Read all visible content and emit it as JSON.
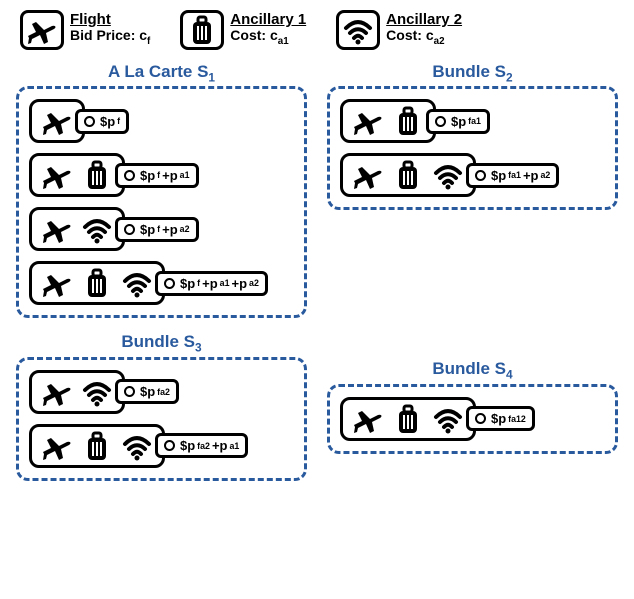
{
  "header": {
    "flight": {
      "label": "Flight",
      "cost_prefix": "Bid Price: c",
      "cost_sub": "f"
    },
    "anc1": {
      "label": "Ancillary 1",
      "cost_prefix": "Cost: c",
      "cost_sub": "a1"
    },
    "anc2": {
      "label": "Ancillary 2",
      "cost_prefix": "Cost: c",
      "cost_sub": "a2"
    }
  },
  "groups": {
    "s1": {
      "title_prefix": "A La Carte S",
      "title_sub": "1",
      "items": [
        {
          "icons": [
            "plane"
          ],
          "tag_prefix": "$p",
          "tag_sub": "f"
        },
        {
          "icons": [
            "plane",
            "bag"
          ],
          "tag_prefix": "$p",
          "tag_sub": "f",
          "extra": "+p",
          "extra_sub": "a1"
        },
        {
          "icons": [
            "plane",
            "wifi"
          ],
          "tag_prefix": "$p",
          "tag_sub": "f",
          "extra": "+p",
          "extra_sub": "a2"
        },
        {
          "icons": [
            "plane",
            "bag",
            "wifi"
          ],
          "tag_prefix": "$p",
          "tag_sub": "f",
          "extra": "+p",
          "extra_sub": "a1",
          "extra2": "+p",
          "extra2_sub": "a2"
        }
      ]
    },
    "s2": {
      "title_prefix": "Bundle S",
      "title_sub": "2",
      "items": [
        {
          "icons": [
            "plane",
            "bag"
          ],
          "tag_prefix": "$p",
          "tag_sub": "fa1"
        },
        {
          "icons": [
            "plane",
            "bag",
            "wifi"
          ],
          "tag_prefix": "$p",
          "tag_sub": "fa1",
          "extra": "+p",
          "extra_sub": "a2"
        }
      ]
    },
    "s3": {
      "title_prefix": "Bundle S",
      "title_sub": "3",
      "items": [
        {
          "icons": [
            "plane",
            "wifi"
          ],
          "tag_prefix": "$p",
          "tag_sub": "fa2"
        },
        {
          "icons": [
            "plane",
            "bag",
            "wifi"
          ],
          "tag_prefix": "$p",
          "tag_sub": "fa2",
          "extra": "+p",
          "extra_sub": "a1"
        }
      ]
    },
    "s4": {
      "title_prefix": "Bundle S",
      "title_sub": "4",
      "items": [
        {
          "icons": [
            "plane",
            "bag",
            "wifi"
          ],
          "tag_prefix": "$p",
          "tag_sub": "fa12"
        }
      ]
    }
  },
  "style": {
    "border_color": "#000000",
    "dash_color": "#2a5a9e",
    "title_color": "#2a5a9e",
    "background": "#ffffff",
    "border_width": 3,
    "border_radius": 10,
    "title_fontsize": 17,
    "tag_fontsize": 13
  }
}
